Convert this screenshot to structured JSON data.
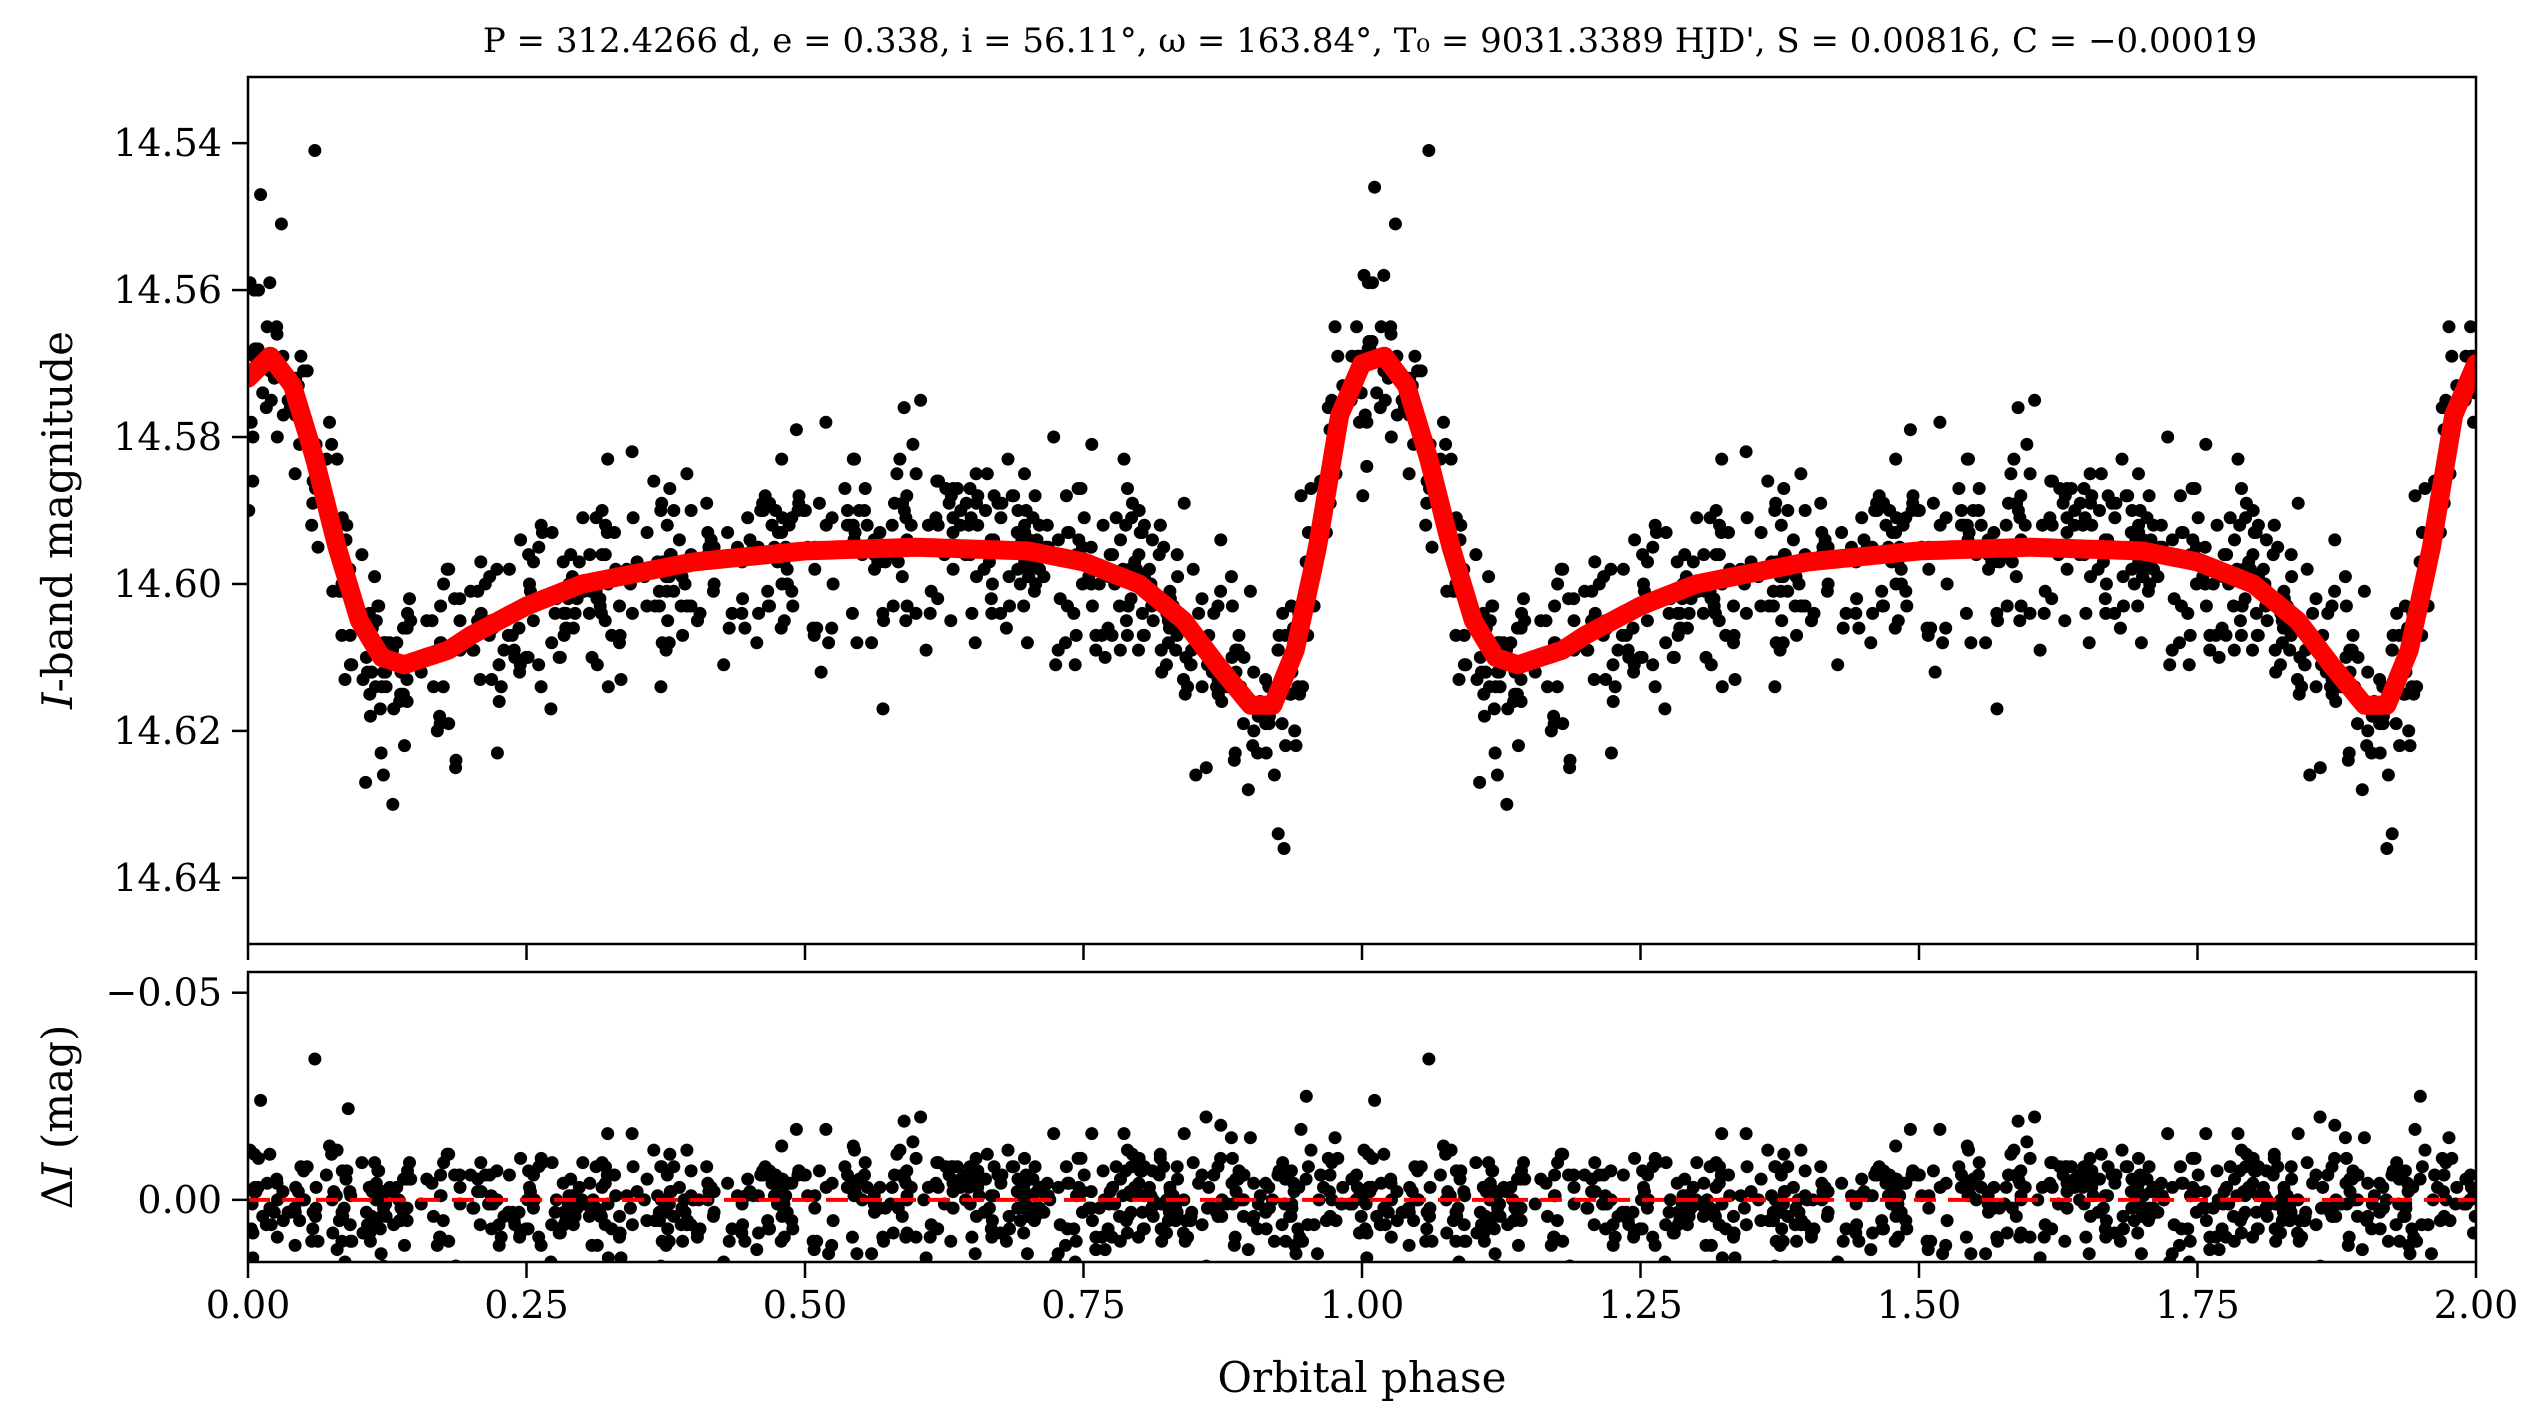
{
  "chart_data": [
    {
      "type": "scatter",
      "title": "P = 312.4266 d, e = 0.338, i = 56.11°, ω = 163.84°, T₀ = 9031.3389 HJD', S = 0.00816, C = −0.00019",
      "xlabel": "",
      "ylabel": "I-band magnitude",
      "xlim": [
        0.0,
        2.0
      ],
      "ylim": [
        14.649,
        14.531
      ],
      "y_inverted": true,
      "yticks": [
        14.54,
        14.56,
        14.58,
        14.6,
        14.62,
        14.64
      ],
      "ytick_labels": [
        "14.54",
        "14.56",
        "14.58",
        "14.60",
        "14.62",
        "14.64"
      ],
      "grid": false,
      "model": {
        "name": "",
        "color": "#ff0000",
        "x": [
          0.0,
          0.02,
          0.04,
          0.06,
          0.08,
          0.1,
          0.12,
          0.14,
          0.16,
          0.18,
          0.2,
          0.25,
          0.3,
          0.4,
          0.5,
          0.6,
          0.7,
          0.75,
          0.8,
          0.84,
          0.87,
          0.9,
          0.92,
          0.94,
          0.96,
          0.98,
          1.0,
          1.02,
          1.04,
          1.06,
          1.08,
          1.1,
          1.12,
          1.14,
          1.16,
          1.18,
          1.2,
          1.25,
          1.3,
          1.4,
          1.5,
          1.6,
          1.7,
          1.75,
          1.8,
          1.84,
          1.87,
          1.9,
          1.92,
          1.94,
          1.96,
          1.98,
          2.0
        ],
        "y": [
          14.572,
          14.569,
          14.573,
          14.583,
          14.595,
          14.605,
          14.61,
          14.611,
          14.61,
          14.609,
          14.607,
          14.603,
          14.6,
          14.597,
          14.5955,
          14.595,
          14.5955,
          14.597,
          14.6,
          14.605,
          14.611,
          14.6165,
          14.6165,
          14.609,
          14.595,
          14.577,
          14.57,
          14.569,
          14.573,
          14.583,
          14.595,
          14.605,
          14.61,
          14.611,
          14.61,
          14.609,
          14.607,
          14.603,
          14.6,
          14.597,
          14.5955,
          14.595,
          14.5955,
          14.597,
          14.6,
          14.605,
          14.611,
          14.6165,
          14.6165,
          14.609,
          14.595,
          14.577,
          14.57
        ]
      },
      "points": {
        "color": "#000000",
        "count": 1400,
        "scatter_sd": 0.0068,
        "outliers": [
          {
            "x": 0.06,
            "y": 14.541
          },
          {
            "x": 1.06,
            "y": 14.541
          },
          {
            "x": 0.03,
            "y": 14.551
          },
          {
            "x": 1.03,
            "y": 14.551
          },
          {
            "x": 0.13,
            "y": 14.63
          },
          {
            "x": 1.13,
            "y": 14.63
          },
          {
            "x": 0.93,
            "y": 14.636
          },
          {
            "x": 1.92,
            "y": 14.636
          },
          {
            "x": 0.57,
            "y": 14.617
          },
          {
            "x": 1.57,
            "y": 14.617
          }
        ]
      }
    },
    {
      "type": "scatter",
      "title": "",
      "xlabel": "Orbital phase",
      "ylabel": "ΔI (mag)",
      "xlim": [
        0.0,
        2.0
      ],
      "ylim": [
        0.015,
        -0.055
      ],
      "y_inverted": true,
      "yticks": [
        -0.05,
        0.0
      ],
      "ytick_labels": [
        "−0.05",
        "0.00"
      ],
      "xticks": [
        0.0,
        0.25,
        0.5,
        0.75,
        1.0,
        1.25,
        1.5,
        1.75,
        2.0
      ],
      "xtick_labels": [
        "0.00",
        "0.25",
        "0.50",
        "0.75",
        "1.00",
        "1.25",
        "1.50",
        "1.75",
        "2.00"
      ],
      "grid": false,
      "zero_line": {
        "y": 0.0,
        "color": "#ff0000",
        "style": "dashed"
      },
      "points": {
        "color": "#000000",
        "count": 1400,
        "scatter_sd": 0.0068,
        "outliers": [
          {
            "x": 0.06,
            "y": -0.034
          },
          {
            "x": 1.06,
            "y": -0.034
          },
          {
            "x": 0.09,
            "y": -0.022
          },
          {
            "x": 0.95,
            "y": -0.025
          },
          {
            "x": 1.95,
            "y": -0.025
          },
          {
            "x": 0.86,
            "y": -0.02
          },
          {
            "x": 1.86,
            "y": -0.02
          },
          {
            "x": 0.08,
            "y": 0.012
          },
          {
            "x": 0.96,
            "y": 0.013
          },
          {
            "x": 1.96,
            "y": 0.013
          }
        ]
      }
    }
  ]
}
